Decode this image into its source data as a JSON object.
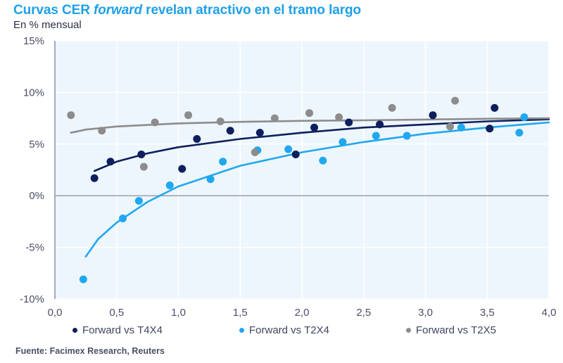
{
  "header": {
    "title_pre": "Curvas CER ",
    "title_em": "forward",
    "title_post": " revelan atractivo en el tramo largo",
    "subtitle": "En % mensual"
  },
  "colors": {
    "title": "#1fa0e8",
    "plot_bg": "#eef6fd",
    "grid": "#ffffff",
    "axis": "#8a90a8",
    "zero_line": "#9a9ea8"
  },
  "chart_data": {
    "type": "scatter",
    "title": "Curvas CER forward revelan atractivo en el tramo largo",
    "subtitle": "En % mensual",
    "xlabel": "",
    "ylabel": "",
    "xlim": [
      0,
      4
    ],
    "ylim": [
      -10,
      15
    ],
    "x_ticks": [
      0,
      0.5,
      1,
      1.5,
      2,
      2.5,
      3,
      3.5,
      4
    ],
    "x_tick_labels": [
      "0,0",
      "0,5",
      "1,0",
      "1,5",
      "2,0",
      "2,5",
      "3,0",
      "3,5",
      "4,0"
    ],
    "y_ticks": [
      -10,
      -5,
      0,
      5,
      10,
      15
    ],
    "y_tick_labels": [
      "-10%",
      "-5%",
      "0%",
      "5%",
      "10%",
      "15%"
    ],
    "grid": true,
    "legend_position": "bottom",
    "series": [
      {
        "name": "Forward vs T4X4",
        "color": "#0d1f5c",
        "points": [
          [
            0.32,
            1.7
          ],
          [
            0.45,
            3.3
          ],
          [
            0.7,
            4.0
          ],
          [
            1.03,
            2.6
          ],
          [
            1.15,
            5.5
          ],
          [
            1.42,
            6.3
          ],
          [
            1.66,
            6.1
          ],
          [
            1.95,
            4.0
          ],
          [
            2.1,
            6.6
          ],
          [
            2.38,
            7.1
          ],
          [
            2.63,
            6.9
          ],
          [
            3.06,
            7.8
          ],
          [
            3.52,
            6.5
          ],
          [
            3.56,
            8.5
          ]
        ],
        "trend": {
          "type": "logarithmic",
          "x": [
            0.32,
            0.5,
            0.75,
            1.0,
            1.5,
            2.0,
            2.5,
            3.0,
            3.5,
            4.0
          ],
          "y": [
            2.4,
            3.3,
            4.1,
            4.7,
            5.5,
            6.1,
            6.6,
            6.9,
            7.2,
            7.4
          ]
        }
      },
      {
        "name": "Forward vs T2X4",
        "color": "#1fa8f0",
        "points": [
          [
            0.23,
            -8.1
          ],
          [
            0.55,
            -2.2
          ],
          [
            0.68,
            -0.5
          ],
          [
            0.93,
            1.0
          ],
          [
            1.26,
            1.6
          ],
          [
            1.36,
            3.3
          ],
          [
            1.64,
            4.4
          ],
          [
            1.89,
            4.5
          ],
          [
            2.17,
            3.4
          ],
          [
            2.33,
            5.2
          ],
          [
            2.6,
            5.8
          ],
          [
            2.85,
            5.8
          ],
          [
            3.29,
            6.6
          ],
          [
            3.76,
            6.1
          ],
          [
            3.8,
            7.6
          ]
        ],
        "trend": {
          "type": "logarithmic",
          "x": [
            0.25,
            0.35,
            0.5,
            0.75,
            1.0,
            1.5,
            2.0,
            2.5,
            3.0,
            3.5,
            4.0
          ],
          "y": [
            -5.9,
            -4.2,
            -2.6,
            -0.6,
            0.9,
            2.9,
            4.2,
            5.2,
            6.0,
            6.6,
            7.1
          ]
        }
      },
      {
        "name": "Forward vs T2X5",
        "color": "#8c8c8c",
        "points": [
          [
            0.13,
            7.8
          ],
          [
            0.38,
            6.3
          ],
          [
            0.72,
            2.8
          ],
          [
            0.81,
            7.1
          ],
          [
            1.08,
            7.8
          ],
          [
            1.34,
            7.2
          ],
          [
            1.62,
            4.2
          ],
          [
            1.78,
            7.5
          ],
          [
            2.06,
            8.0
          ],
          [
            2.3,
            7.6
          ],
          [
            2.73,
            8.5
          ],
          [
            3.2,
            6.7
          ],
          [
            3.24,
            9.2
          ]
        ],
        "trend": {
          "type": "logarithmic",
          "x": [
            0.13,
            0.25,
            0.5,
            1.0,
            1.5,
            2.0,
            2.5,
            3.0,
            3.5,
            4.0
          ],
          "y": [
            6.1,
            6.4,
            6.7,
            7.0,
            7.15,
            7.25,
            7.3,
            7.38,
            7.45,
            7.5
          ]
        }
      }
    ]
  },
  "legend": {
    "items": [
      {
        "label": "Forward vs T4X4",
        "color": "#0d1f5c"
      },
      {
        "label": "Forward vs T2X4",
        "color": "#1fa8f0"
      },
      {
        "label": "Forward vs T2X5",
        "color": "#8c8c8c"
      }
    ]
  },
  "footer": {
    "source": "Fuente: Facimex Research, Reuters"
  }
}
